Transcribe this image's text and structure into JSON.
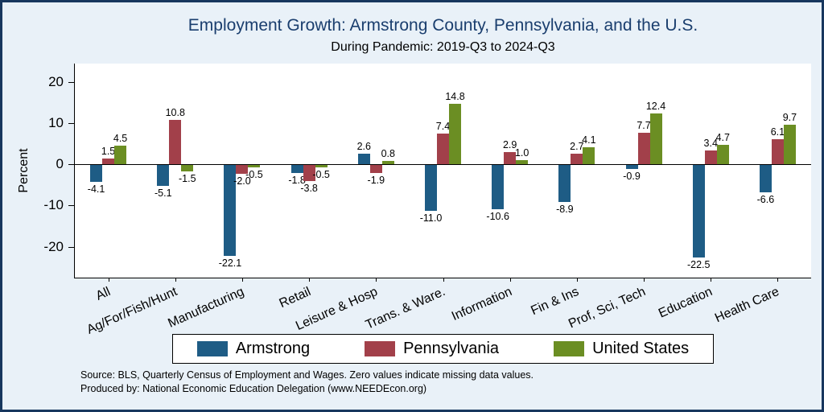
{
  "colors": {
    "background": "#e9f1f8",
    "frame_border": "#17375e",
    "title": "#1a3e6e",
    "plot_background": "#ffffff",
    "armstrong": "#1e5c85",
    "pennsylvania": "#a2404a",
    "united_states": "#6b8e23"
  },
  "chart_data": {
    "type": "bar",
    "title": "Employment Growth: Armstrong County, Pennsylvania, and the U.S.",
    "subtitle": "During Pandemic: 2019-Q3 to 2024-Q3",
    "ylabel": "Percent",
    "xlabel": "",
    "ylim": [
      -27.5,
      24.5
    ],
    "yticks": [
      20,
      10,
      0,
      -10,
      -20
    ],
    "grid": false,
    "legend_position": "bottom",
    "categories": [
      "All",
      "Ag/For/Fish/Hunt",
      "Manufacturing",
      "Retail",
      "Leisure & Hosp",
      "Trans. & Ware.",
      "Information",
      "Fin & Ins",
      "Prof, Sci, Tech",
      "Education",
      "Health Care"
    ],
    "series": [
      {
        "name": "Armstrong",
        "color": "#1e5c85",
        "values": [
          -4.1,
          -5.1,
          -22.1,
          -1.8,
          2.6,
          -11.0,
          -10.6,
          -8.9,
          -0.9,
          -22.5,
          -6.6
        ]
      },
      {
        "name": "Pennsylvania",
        "color": "#a2404a",
        "values": [
          1.5,
          10.8,
          -2.0,
          -3.8,
          -1.9,
          7.4,
          2.9,
          2.7,
          7.7,
          3.4,
          6.1
        ]
      },
      {
        "name": "United States",
        "color": "#6b8e23",
        "values": [
          4.5,
          -1.5,
          -0.5,
          -0.5,
          0.8,
          14.8,
          1.0,
          4.1,
          12.4,
          4.7,
          9.7
        ]
      }
    ],
    "notes": [
      "Source: BLS, Quarterly Census of Employment and Wages. Zero values indicate missing data values.",
      "Produced by: National Economic Education Delegation (www.NEEDEcon.org)"
    ]
  }
}
